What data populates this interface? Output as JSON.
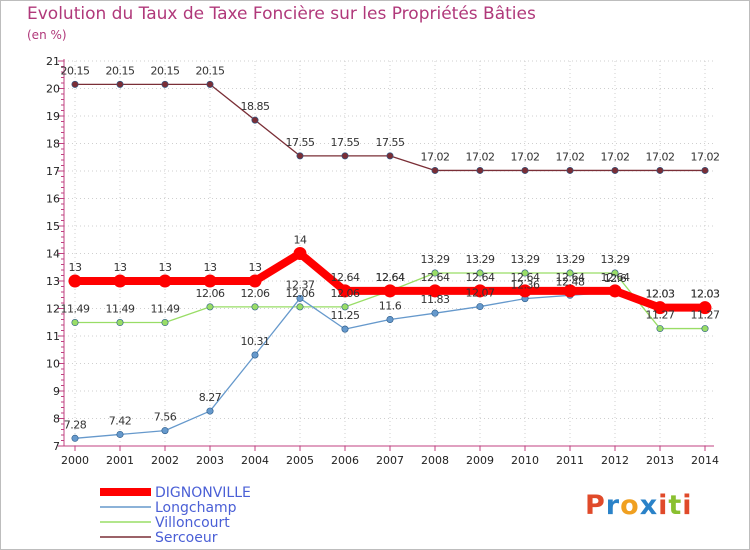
{
  "chart_data": {
    "type": "line",
    "title": "Evolution du Taux de Taxe Foncière sur les Propriétés Bâties",
    "subtitle": "(en %)",
    "categories": [
      "2000",
      "2001",
      "2002",
      "2003",
      "2004",
      "2005",
      "2006",
      "2007",
      "2008",
      "2009",
      "2010",
      "2011",
      "2012",
      "2013",
      "2014"
    ],
    "ylim": [
      7,
      21
    ],
    "yticks": [
      "7",
      "8",
      "9",
      "10",
      "11",
      "12",
      "13",
      "14",
      "15",
      "16",
      "17",
      "18",
      "19",
      "20",
      "21"
    ],
    "series": [
      {
        "name": "DIGNONVILLE",
        "color": "#ff0000",
        "values": [
          13,
          13,
          13,
          13,
          13,
          14,
          12.64,
          12.64,
          12.64,
          12.64,
          12.64,
          12.64,
          12.64,
          12.03,
          12.03
        ],
        "labels": [
          "13",
          "13",
          "13",
          "13",
          "13",
          "14",
          "12.64",
          "12.64",
          "12.64",
          "12.64",
          "12.64",
          "12.64",
          "12.64",
          "12.03",
          "12.03"
        ]
      },
      {
        "name": "Longchamp",
        "color": "#6699cc",
        "values": [
          7.28,
          7.42,
          7.56,
          8.27,
          10.31,
          12.37,
          11.25,
          11.6,
          11.83,
          12.07,
          12.36,
          12.48,
          12.6,
          12.03,
          12.03
        ],
        "labels": [
          "7.28",
          "7.42",
          "7.56",
          "8.27",
          "10.31",
          "12.37",
          "11.25",
          "11.6",
          "11.83",
          "12.07",
          "12.36",
          "12.48",
          "12.6",
          "12.03",
          "12.03"
        ]
      },
      {
        "name": "Villoncourt",
        "color": "#99dd66",
        "values": [
          11.49,
          11.49,
          11.49,
          12.06,
          12.06,
          12.06,
          12.06,
          12.64,
          13.29,
          13.29,
          13.29,
          13.29,
          13.29,
          11.27,
          11.27
        ],
        "labels": [
          "11.49",
          "11.49",
          "11.49",
          "12.06",
          "12.06",
          "12.06",
          "12.06",
          "12.64",
          "13.29",
          "13.29",
          "13.29",
          "13.29",
          "13.29",
          "11.27",
          "11.27"
        ]
      },
      {
        "name": "Sercoeur",
        "color": "#7a2e36",
        "values": [
          20.15,
          20.15,
          20.15,
          20.15,
          18.85,
          17.55,
          17.55,
          17.55,
          17.02,
          17.02,
          17.02,
          17.02,
          17.02,
          17.02,
          17.02
        ],
        "labels": [
          "20.15",
          "20.15",
          "20.15",
          "20.15",
          "18.85",
          "17.55",
          "17.55",
          "17.55",
          "17.02",
          "17.02",
          "17.02",
          "17.02",
          "17.02",
          "17.02",
          "17.02"
        ]
      }
    ]
  },
  "logo": {
    "text": "Proxiti",
    "letters": [
      "P",
      "r",
      "o",
      "x",
      "i",
      "t",
      "i"
    ],
    "colors": [
      "#e04a2a",
      "#2a82c8",
      "#f0a020",
      "#2a82c8",
      "#e04a2a",
      "#8ac030",
      "#e04a2a"
    ]
  }
}
